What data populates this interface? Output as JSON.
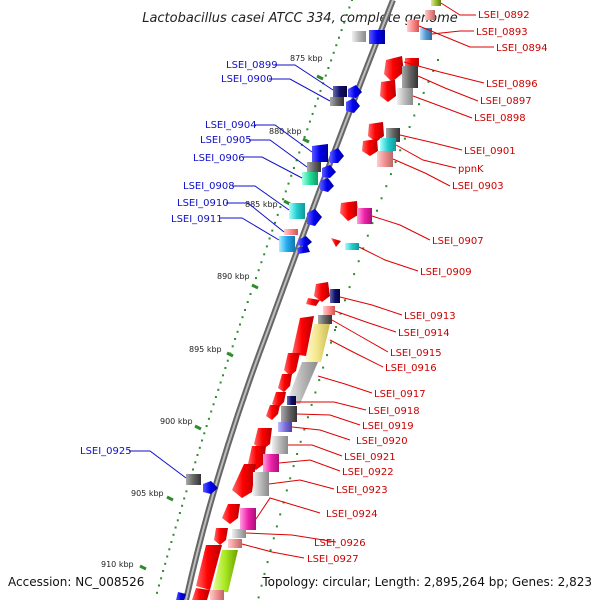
{
  "title": "Lactobacillus casei ATCC 334, complete genome",
  "footer": {
    "accession": "Accession: NC_008526",
    "topology": "Topology: circular; Length: 2,895,264 bp; Genes: 2,823"
  },
  "ticks": [
    {
      "label": "875 kbp",
      "kb": 875
    },
    {
      "label": "880 kbp",
      "kb": 880
    },
    {
      "label": "885 kbp",
      "kb": 885
    },
    {
      "label": "890 kbp",
      "kb": 890
    },
    {
      "label": "895 kbp",
      "kb": 895
    },
    {
      "label": "900 kbp",
      "kb": 900
    },
    {
      "label": "905 kbp",
      "kb": 905
    },
    {
      "label": "910 kbp",
      "kb": 910
    }
  ],
  "genes_left": [
    {
      "label": "LSEI_0899",
      "color": "#1010c8"
    },
    {
      "label": "LSEI_0900",
      "color": "#1010c8"
    },
    {
      "label": "LSEI_0904",
      "color": "#1010c8"
    },
    {
      "label": "LSEI_0905",
      "color": "#1010c8"
    },
    {
      "label": "LSEI_0906",
      "color": "#1010c8"
    },
    {
      "label": "LSEI_0908",
      "color": "#1010c8"
    },
    {
      "label": "LSEI_0910",
      "color": "#1010c8"
    },
    {
      "label": "LSEI_0911",
      "color": "#1010c8"
    },
    {
      "label": "LSEI_0925",
      "color": "#1010c8"
    }
  ],
  "genes_right": [
    {
      "label": "LSEI_0892",
      "color": "#cc0000"
    },
    {
      "label": "LSEI_0893",
      "color": "#cc0000"
    },
    {
      "label": "LSEI_0894",
      "color": "#cc0000"
    },
    {
      "label": "LSEI_0896",
      "color": "#cc0000"
    },
    {
      "label": "LSEI_0897",
      "color": "#cc0000"
    },
    {
      "label": "LSEI_0898",
      "color": "#cc0000"
    },
    {
      "label": "LSEI_0901",
      "color": "#cc0000"
    },
    {
      "label": "ppnK",
      "color": "#cc0000"
    },
    {
      "label": "LSEI_0903",
      "color": "#cc0000"
    },
    {
      "label": "LSEI_0907",
      "color": "#cc0000"
    },
    {
      "label": "LSEI_0909",
      "color": "#cc0000"
    },
    {
      "label": "LSEI_0913",
      "color": "#cc0000"
    },
    {
      "label": "LSEI_0914",
      "color": "#cc0000"
    },
    {
      "label": "LSEI_0915",
      "color": "#cc0000"
    },
    {
      "label": "LSEI_0916",
      "color": "#cc0000"
    },
    {
      "label": "LSEI_0917",
      "color": "#cc0000"
    },
    {
      "label": "LSEI_0918",
      "color": "#cc0000"
    },
    {
      "label": "LSEI_0919",
      "color": "#cc0000"
    },
    {
      "label": "LSEI_0920",
      "color": "#cc0000"
    },
    {
      "label": "LSEI_0921",
      "color": "#cc0000"
    },
    {
      "label": "LSEI_0922",
      "color": "#cc0000"
    },
    {
      "label": "LSEI_0923",
      "color": "#cc0000"
    },
    {
      "label": "LSEI_0924",
      "color": "#cc0000"
    },
    {
      "label": "LSEI_0926",
      "color": "#cc0000"
    },
    {
      "label": "LSEI_0927",
      "color": "#cc0000"
    }
  ]
}
